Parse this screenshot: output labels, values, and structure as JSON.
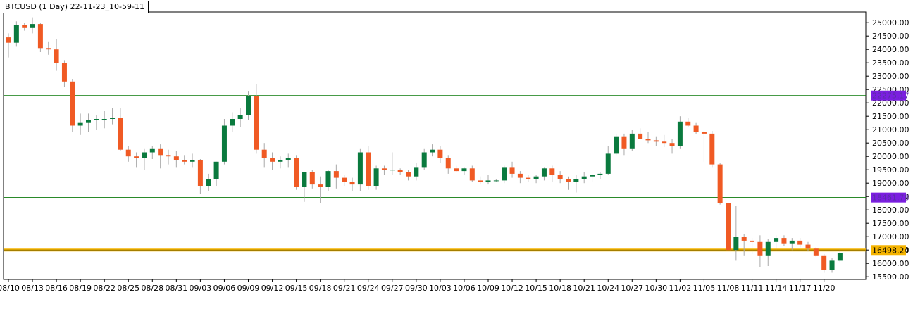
{
  "title": "BTCUSD (1 Day) 22-11-23_10-59-11",
  "colors": {
    "up": "#0a7a3e",
    "down": "#f05a24",
    "wick": "#a9a9a9",
    "level": "#0b7a0b",
    "current_line": "#f5b400",
    "level_tag_purple": "#7b1fe0",
    "current_tag": "#f5b400",
    "grid_border": "#000000"
  },
  "chart_data": {
    "type": "candlestick",
    "title": "BTCUSD (1 Day) 22-11-23_10-59-11",
    "ylim": [
      15400,
      25400
    ],
    "y_ticks": [
      "15500.00",
      "16000.00",
      "16500.00",
      "17000.00",
      "17500.00",
      "18000.00",
      "18500.00",
      "19000.00",
      "19500.00",
      "20000.00",
      "20500.00",
      "21000.00",
      "21500.00",
      "22000.00",
      "22500.00",
      "23000.00",
      "23500.00",
      "24000.00",
      "24500.00",
      "25000.00"
    ],
    "x_tick_labels": [
      "08/10",
      "08/13",
      "08/16",
      "08/19",
      "08/22",
      "08/25",
      "08/28",
      "08/31",
      "09/03",
      "09/06",
      "09/09",
      "09/12",
      "09/15",
      "09/18",
      "09/21",
      "09/24",
      "09/27",
      "09/30",
      "10/03",
      "10/06",
      "10/09",
      "10/12",
      "10/15",
      "10/18",
      "10/21",
      "10/24",
      "10/27",
      "10/30",
      "11/02",
      "11/05",
      "11/08",
      "11/11",
      "11/14",
      "11/17",
      "11/20"
    ],
    "levels": [
      {
        "value": 22275.17,
        "label": "22275.17",
        "style": "purple"
      },
      {
        "value": 18461.78,
        "label": "18461.78",
        "style": "purple"
      },
      {
        "value": 16498.24,
        "label": "16498.24",
        "style": "current"
      }
    ],
    "candles": [
      {
        "o": 24450,
        "h": 24600,
        "l": 23700,
        "c": 24250
      },
      {
        "o": 24250,
        "h": 25050,
        "l": 24100,
        "c": 24900
      },
      {
        "o": 24900,
        "h": 25000,
        "l": 24700,
        "c": 24800
      },
      {
        "o": 24800,
        "h": 25200,
        "l": 24600,
        "c": 24950
      },
      {
        "o": 24950,
        "h": 25000,
        "l": 23900,
        "c": 24050
      },
      {
        "o": 24050,
        "h": 24300,
        "l": 23800,
        "c": 24000
      },
      {
        "o": 24000,
        "h": 24400,
        "l": 23200,
        "c": 23500
      },
      {
        "o": 23500,
        "h": 23600,
        "l": 22600,
        "c": 22800
      },
      {
        "o": 22800,
        "h": 22900,
        "l": 20900,
        "c": 21150
      },
      {
        "o": 21150,
        "h": 21600,
        "l": 20800,
        "c": 21250
      },
      {
        "o": 21250,
        "h": 21600,
        "l": 20900,
        "c": 21350
      },
      {
        "o": 21350,
        "h": 21550,
        "l": 21000,
        "c": 21400
      },
      {
        "o": 21400,
        "h": 21700,
        "l": 21050,
        "c": 21400
      },
      {
        "o": 21400,
        "h": 21800,
        "l": 21200,
        "c": 21450
      },
      {
        "o": 21450,
        "h": 21800,
        "l": 20200,
        "c": 20250
      },
      {
        "o": 20250,
        "h": 20400,
        "l": 19800,
        "c": 20000
      },
      {
        "o": 20000,
        "h": 20150,
        "l": 19600,
        "c": 19950
      },
      {
        "o": 19950,
        "h": 20300,
        "l": 19500,
        "c": 20150
      },
      {
        "o": 20150,
        "h": 20400,
        "l": 19900,
        "c": 20300
      },
      {
        "o": 20300,
        "h": 20450,
        "l": 19550,
        "c": 20050
      },
      {
        "o": 20050,
        "h": 20250,
        "l": 19700,
        "c": 20000
      },
      {
        "o": 20000,
        "h": 20200,
        "l": 19600,
        "c": 19850
      },
      {
        "o": 19850,
        "h": 20050,
        "l": 19700,
        "c": 19800
      },
      {
        "o": 19800,
        "h": 20100,
        "l": 19600,
        "c": 19850
      },
      {
        "o": 19850,
        "h": 19900,
        "l": 18600,
        "c": 18900
      },
      {
        "o": 18900,
        "h": 19350,
        "l": 18700,
        "c": 19150
      },
      {
        "o": 19150,
        "h": 19800,
        "l": 18900,
        "c": 19800
      },
      {
        "o": 19800,
        "h": 21400,
        "l": 19700,
        "c": 21150
      },
      {
        "o": 21150,
        "h": 21650,
        "l": 20900,
        "c": 21400
      },
      {
        "o": 21400,
        "h": 21800,
        "l": 21100,
        "c": 21550
      },
      {
        "o": 21550,
        "h": 22450,
        "l": 21350,
        "c": 22250
      },
      {
        "o": 22250,
        "h": 22700,
        "l": 20100,
        "c": 20250
      },
      {
        "o": 20250,
        "h": 20500,
        "l": 19600,
        "c": 19950
      },
      {
        "o": 19950,
        "h": 20150,
        "l": 19500,
        "c": 19800
      },
      {
        "o": 19800,
        "h": 20000,
        "l": 19550,
        "c": 19850
      },
      {
        "o": 19850,
        "h": 20100,
        "l": 19600,
        "c": 19950
      },
      {
        "o": 19950,
        "h": 20050,
        "l": 18750,
        "c": 18850
      },
      {
        "o": 18850,
        "h": 19400,
        "l": 18300,
        "c": 19400
      },
      {
        "o": 19400,
        "h": 19500,
        "l": 18800,
        "c": 18950
      },
      {
        "o": 18950,
        "h": 19250,
        "l": 18250,
        "c": 18850
      },
      {
        "o": 18850,
        "h": 19500,
        "l": 18700,
        "c": 19450
      },
      {
        "o": 19450,
        "h": 19700,
        "l": 18800,
        "c": 19200
      },
      {
        "o": 19200,
        "h": 19300,
        "l": 18900,
        "c": 19050
      },
      {
        "o": 19050,
        "h": 19200,
        "l": 18700,
        "c": 18950
      },
      {
        "o": 18950,
        "h": 20300,
        "l": 18700,
        "c": 20150
      },
      {
        "o": 20150,
        "h": 20400,
        "l": 18750,
        "c": 18900
      },
      {
        "o": 18900,
        "h": 19650,
        "l": 18750,
        "c": 19550
      },
      {
        "o": 19550,
        "h": 19650,
        "l": 19300,
        "c": 19500
      },
      {
        "o": 19500,
        "h": 20150,
        "l": 19300,
        "c": 19500
      },
      {
        "o": 19500,
        "h": 19550,
        "l": 19300,
        "c": 19400
      },
      {
        "o": 19400,
        "h": 19500,
        "l": 19100,
        "c": 19250
      },
      {
        "o": 19250,
        "h": 19750,
        "l": 19100,
        "c": 19600
      },
      {
        "o": 19600,
        "h": 20300,
        "l": 19500,
        "c": 20150
      },
      {
        "o": 20150,
        "h": 20450,
        "l": 20000,
        "c": 20250
      },
      {
        "o": 20250,
        "h": 20400,
        "l": 19750,
        "c": 19950
      },
      {
        "o": 19950,
        "h": 20050,
        "l": 19350,
        "c": 19550
      },
      {
        "o": 19550,
        "h": 19650,
        "l": 19400,
        "c": 19450
      },
      {
        "o": 19450,
        "h": 19600,
        "l": 19300,
        "c": 19550
      },
      {
        "o": 19550,
        "h": 19650,
        "l": 19050,
        "c": 19100
      },
      {
        "o": 19100,
        "h": 19250,
        "l": 18950,
        "c": 19050
      },
      {
        "o": 19050,
        "h": 19300,
        "l": 18950,
        "c": 19100
      },
      {
        "o": 19100,
        "h": 19150,
        "l": 19050,
        "c": 19100
      },
      {
        "o": 19100,
        "h": 19650,
        "l": 19000,
        "c": 19600
      },
      {
        "o": 19600,
        "h": 19800,
        "l": 19200,
        "c": 19350
      },
      {
        "o": 19350,
        "h": 19450,
        "l": 19000,
        "c": 19200
      },
      {
        "o": 19200,
        "h": 19300,
        "l": 19050,
        "c": 19150
      },
      {
        "o": 19150,
        "h": 19300,
        "l": 19000,
        "c": 19250
      },
      {
        "o": 19250,
        "h": 19600,
        "l": 19100,
        "c": 19550
      },
      {
        "o": 19550,
        "h": 19650,
        "l": 19050,
        "c": 19300
      },
      {
        "o": 19300,
        "h": 19450,
        "l": 19000,
        "c": 19150
      },
      {
        "o": 19150,
        "h": 19250,
        "l": 18750,
        "c": 19050
      },
      {
        "o": 19050,
        "h": 19300,
        "l": 18650,
        "c": 19150
      },
      {
        "o": 19150,
        "h": 19400,
        "l": 19000,
        "c": 19250
      },
      {
        "o": 19250,
        "h": 19350,
        "l": 19050,
        "c": 19300
      },
      {
        "o": 19300,
        "h": 19400,
        "l": 19150,
        "c": 19350
      },
      {
        "o": 19350,
        "h": 20400,
        "l": 19300,
        "c": 20100
      },
      {
        "o": 20100,
        "h": 20850,
        "l": 20050,
        "c": 20750
      },
      {
        "o": 20750,
        "h": 20850,
        "l": 20050,
        "c": 20300
      },
      {
        "o": 20300,
        "h": 21000,
        "l": 20200,
        "c": 20850
      },
      {
        "o": 20850,
        "h": 21050,
        "l": 20650,
        "c": 20650
      },
      {
        "o": 20650,
        "h": 20900,
        "l": 20500,
        "c": 20600
      },
      {
        "o": 20600,
        "h": 20750,
        "l": 20400,
        "c": 20550
      },
      {
        "o": 20550,
        "h": 20800,
        "l": 20350,
        "c": 20500
      },
      {
        "o": 20500,
        "h": 20650,
        "l": 20100,
        "c": 20400
      },
      {
        "o": 20400,
        "h": 21500,
        "l": 20300,
        "c": 21300
      },
      {
        "o": 21300,
        "h": 21450,
        "l": 21100,
        "c": 21150
      },
      {
        "o": 21150,
        "h": 21250,
        "l": 20850,
        "c": 20900
      },
      {
        "o": 20900,
        "h": 20950,
        "l": 19800,
        "c": 20850
      },
      {
        "o": 20850,
        "h": 20950,
        "l": 19600,
        "c": 19700
      },
      {
        "o": 19700,
        "h": 19750,
        "l": 18200,
        "c": 18250
      },
      {
        "o": 18250,
        "h": 18300,
        "l": 15650,
        "c": 16500
      },
      {
        "o": 16500,
        "h": 18150,
        "l": 16100,
        "c": 17000
      },
      {
        "o": 17000,
        "h": 17100,
        "l": 16300,
        "c": 16850
      },
      {
        "o": 16850,
        "h": 16950,
        "l": 16350,
        "c": 16800
      },
      {
        "o": 16800,
        "h": 17050,
        "l": 15850,
        "c": 16300
      },
      {
        "o": 16300,
        "h": 16900,
        "l": 15900,
        "c": 16800
      },
      {
        "o": 16800,
        "h": 17050,
        "l": 16500,
        "c": 16950
      },
      {
        "o": 16950,
        "h": 17050,
        "l": 16650,
        "c": 16750
      },
      {
        "o": 16750,
        "h": 16950,
        "l": 16500,
        "c": 16850
      },
      {
        "o": 16850,
        "h": 16950,
        "l": 16600,
        "c": 16700
      },
      {
        "o": 16700,
        "h": 16800,
        "l": 16450,
        "c": 16550
      },
      {
        "o": 16550,
        "h": 16600,
        "l": 16250,
        "c": 16300
      },
      {
        "o": 16300,
        "h": 16350,
        "l": 15650,
        "c": 15750
      },
      {
        "o": 15750,
        "h": 16200,
        "l": 15650,
        "c": 16100
      },
      {
        "o": 16100,
        "h": 16550,
        "l": 16050,
        "c": 16400
      }
    ]
  }
}
